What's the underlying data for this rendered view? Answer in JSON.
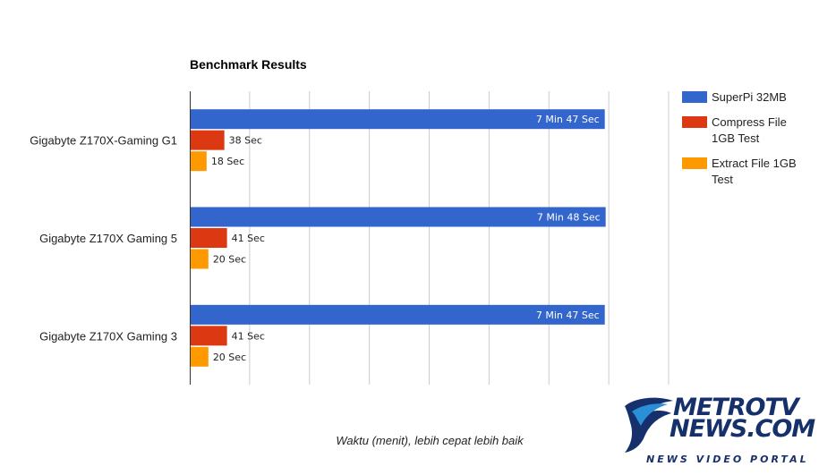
{
  "chart_data": {
    "type": "bar",
    "orientation": "horizontal",
    "title": "Benchmark Results",
    "xlabel": "Waktu (menit), lebih cepat lebih baik",
    "ylabel": "",
    "xlim": [
      0,
      540
    ],
    "grid": true,
    "legend_position": "right",
    "categories": [
      "Gigabyte Z170X-Gaming G1",
      "Gigabyte Z170X Gaming 5",
      "Gigabyte Z170X Gaming 3"
    ],
    "value_unit": "seconds",
    "series": [
      {
        "name": "SuperPi 32MB",
        "legend_lines": [
          "SuperPi 32MB"
        ],
        "color": "#3366cc",
        "values": [
          467,
          468,
          467
        ],
        "labels": [
          "7 Min 47 Sec",
          "7 Min 48 Sec",
          "7 Min 47 Sec"
        ]
      },
      {
        "name": "Compress File 1GB Test",
        "legend_lines": [
          "Compress File",
          "1GB Test"
        ],
        "color": "#dc3912",
        "values": [
          38,
          41,
          41
        ],
        "labels": [
          "38 Sec",
          "41 Sec",
          "41 Sec"
        ]
      },
      {
        "name": "Extract File 1GB Test",
        "legend_lines": [
          "Extract File 1GB",
          "Test"
        ],
        "color": "#ff9900",
        "values": [
          18,
          20,
          20
        ],
        "labels": [
          "18 Sec",
          "20 Sec",
          "20 Sec"
        ]
      }
    ]
  },
  "logo": {
    "line1": "METROTV",
    "line2": "NEWS.COM",
    "tagline": "NEWS VIDEO PORTAL",
    "primary_color": "#15306b",
    "accent_color": "#2a8fd6"
  }
}
